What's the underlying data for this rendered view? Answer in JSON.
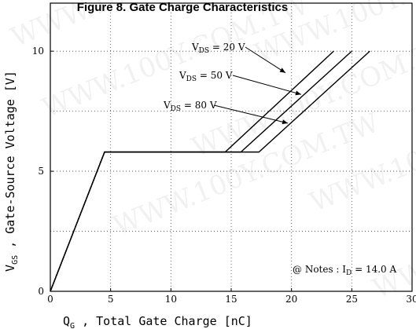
{
  "chart_data": {
    "type": "line",
    "title": "Figure 8. Gate Charge Characteristics",
    "xlabel": "Q_G , Total Gate Charge [nC]",
    "ylabel": "V_GS , Gate-Source Voltage [V]",
    "xlim": [
      0,
      30
    ],
    "ylim": [
      0,
      12
    ],
    "x_ticks": [
      "0",
      "5",
      "10",
      "15",
      "20",
      "25",
      "30"
    ],
    "y_ticks": [
      "0",
      "5",
      "10"
    ],
    "y_tick_values": [
      0,
      5,
      10
    ],
    "grid": true,
    "series": [
      {
        "name": "VDS = 20 V",
        "label_main": "V",
        "label_sub": "DS",
        "label_rest": " = 20 V",
        "x": [
          0,
          4.5,
          14.5,
          23.5
        ],
        "y": [
          0,
          5.8,
          5.8,
          10
        ]
      },
      {
        "name": "VDS = 50 V",
        "label_main": "V",
        "label_sub": "DS",
        "label_rest": " = 50 V",
        "x": [
          0,
          4.5,
          15.8,
          25.0
        ],
        "y": [
          0,
          5.8,
          5.8,
          10
        ]
      },
      {
        "name": "VDS = 80 V",
        "label_main": "V",
        "label_sub": "DS",
        "label_rest": " = 80 V",
        "x": [
          0,
          4.5,
          17.3,
          26.5
        ],
        "y": [
          0,
          5.8,
          5.8,
          10
        ]
      }
    ],
    "note": {
      "prefix": "@ Notes : I",
      "sub": "D",
      "rest": " = 14.0 A"
    },
    "watermark": "WWW.100Y.COM.TW"
  }
}
